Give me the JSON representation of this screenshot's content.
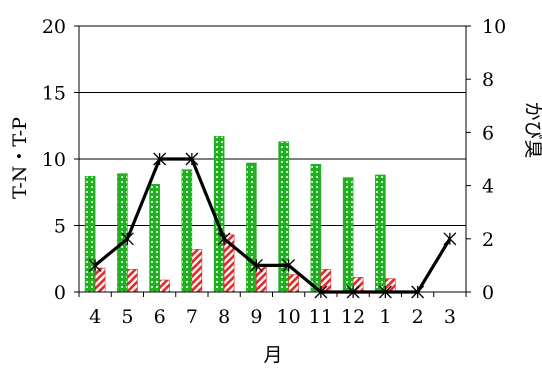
{
  "chart_data": {
    "type": "bar",
    "categories": [
      "4",
      "5",
      "6",
      "7",
      "8",
      "9",
      "10",
      "11",
      "12",
      "1",
      "2",
      "3"
    ],
    "xlabel": "月",
    "ylabel_left": "T-N・T-P",
    "ylabel_right": "かび臭",
    "ylim_left": [
      0,
      20
    ],
    "ylim_right": [
      0,
      10
    ],
    "yticks_left": [
      0,
      5,
      10,
      15,
      20
    ],
    "yticks_right": [
      0,
      2,
      4,
      6,
      8,
      10
    ],
    "grid": true,
    "series": [
      {
        "kind": "bar",
        "axis": "left",
        "color": "#22b022",
        "pattern": "green-checkered",
        "values": [
          8.7,
          8.9,
          8.1,
          9.2,
          11.7,
          9.7,
          11.3,
          9.6,
          8.6,
          8.8,
          null,
          null
        ]
      },
      {
        "kind": "bar",
        "axis": "left",
        "color": "#e02a2a",
        "pattern": "red-diagonal-hatch",
        "values": [
          1.8,
          1.7,
          0.9,
          3.2,
          4.3,
          2.0,
          1.3,
          1.7,
          1.1,
          1.0,
          null,
          null
        ]
      },
      {
        "kind": "line",
        "axis": "right",
        "color": "#000000",
        "marker": "asterisk",
        "values": [
          1,
          2,
          5,
          5,
          2,
          1,
          1,
          0,
          0,
          0,
          0,
          2
        ]
      }
    ]
  }
}
